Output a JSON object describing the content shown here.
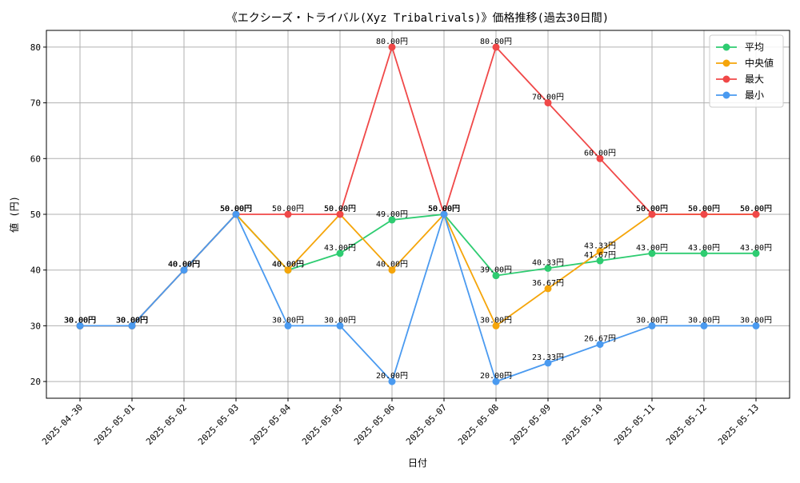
{
  "chart_data": {
    "type": "line",
    "title": "《エクシーズ・トライバル(Xyz Tribalrivals)》価格推移(過去30日間)",
    "xlabel": "日付",
    "ylabel": "値 (円)",
    "ylim": [
      17,
      83
    ],
    "yticks": [
      20,
      30,
      40,
      50,
      60,
      70,
      80
    ],
    "grid": true,
    "legend_position": "top-right",
    "value_suffix": "円",
    "categories": [
      "2025-04-30",
      "2025-05-01",
      "2025-05-02",
      "2025-05-03",
      "2025-05-04",
      "2025-05-05",
      "2025-05-06",
      "2025-05-07",
      "2025-05-08",
      "2025-05-09",
      "2025-05-10",
      "2025-05-11",
      "2025-05-12",
      "2025-05-13"
    ],
    "series": [
      {
        "name": "平均",
        "color": "#2ecc71",
        "values": [
          30,
          30,
          40,
          50,
          40,
          43,
          49,
          50,
          39,
          40.33,
          41.67,
          43,
          43,
          43
        ]
      },
      {
        "name": "中央値",
        "color": "#f5a50a",
        "values": [
          30,
          30,
          40,
          50,
          40,
          50,
          40,
          50,
          30,
          36.67,
          43.33,
          50,
          50,
          50
        ]
      },
      {
        "name": "最大",
        "color": "#f04848",
        "values": [
          30,
          30,
          40,
          50,
          50,
          50,
          80,
          50,
          80,
          70,
          60,
          50,
          50,
          50
        ]
      },
      {
        "name": "最小",
        "color": "#4a9af0",
        "values": [
          30,
          30,
          40,
          50,
          30,
          30,
          20,
          50,
          20,
          23.33,
          26.67,
          30,
          30,
          30
        ]
      }
    ]
  }
}
